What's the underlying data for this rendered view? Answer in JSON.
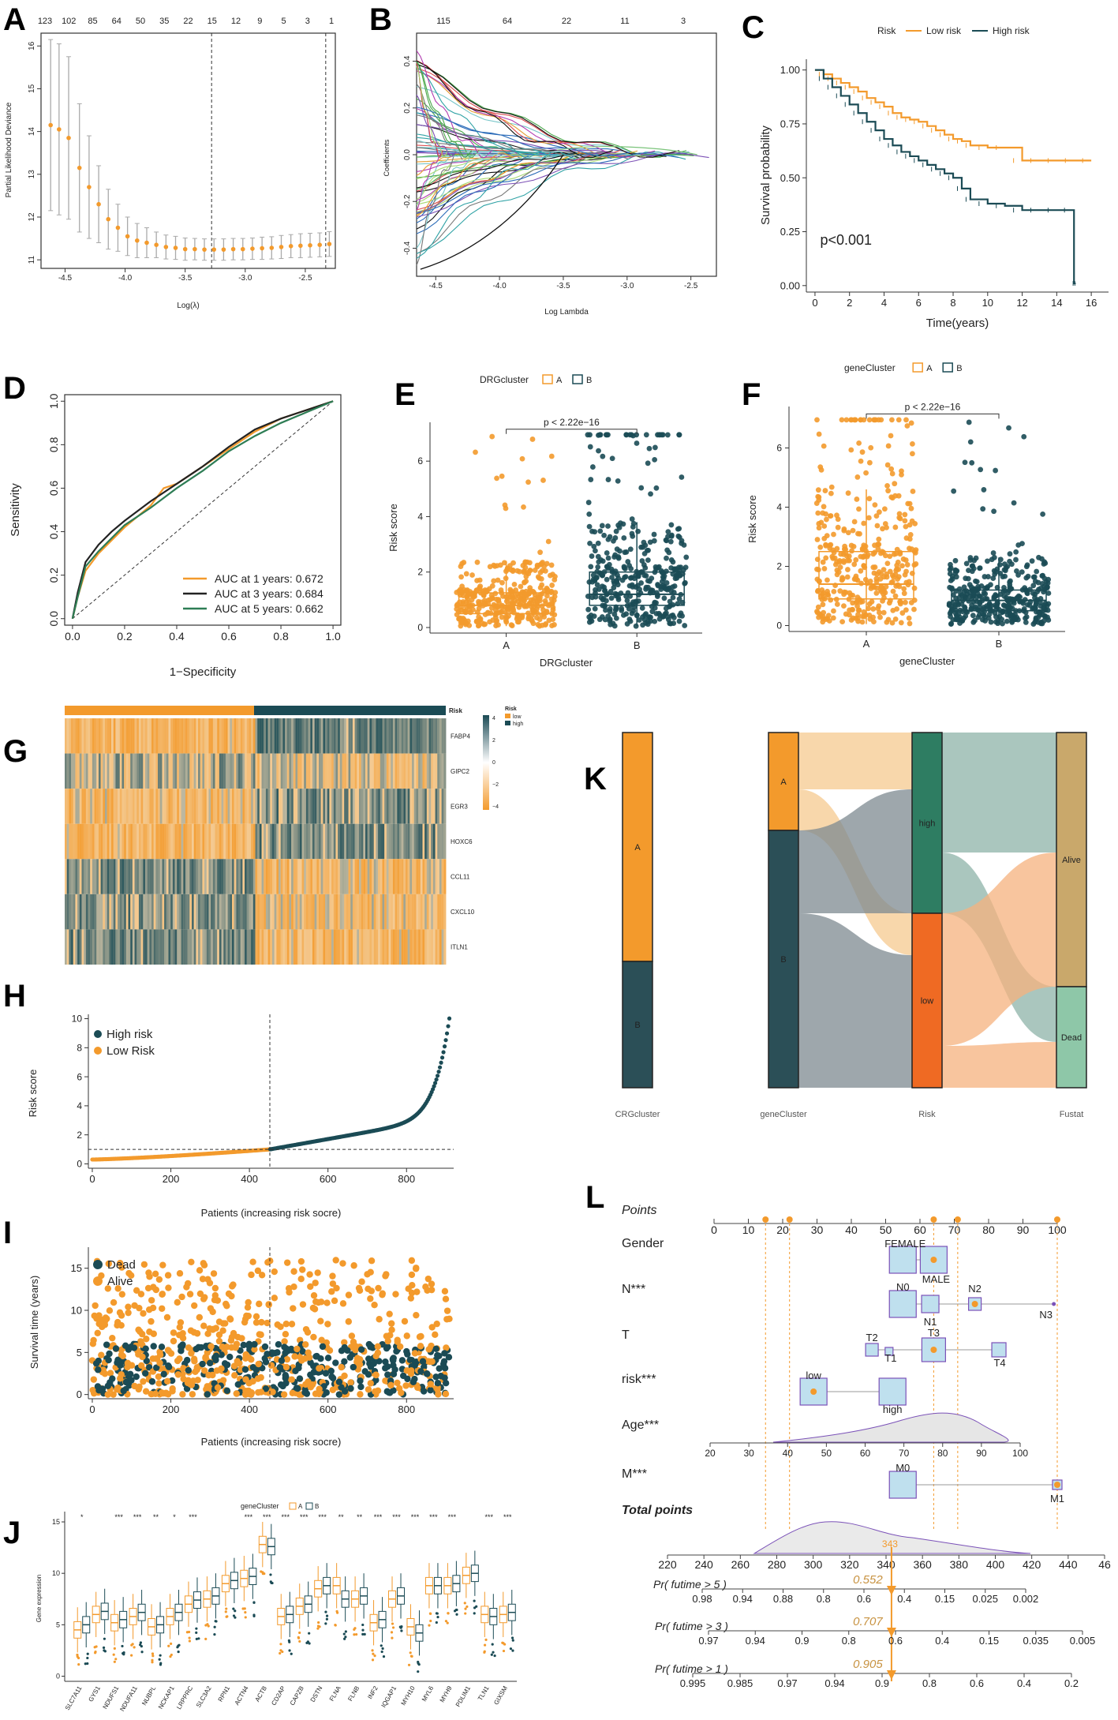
{
  "colors": {
    "orange": "#f39a2c",
    "teal": "#1b4b55",
    "green": "#2e7d55",
    "gray": "#9a9a9a",
    "lightblue": "#bfe0ee",
    "purple": "#7b52b8"
  },
  "panel_labels": {
    "A": "A",
    "B": "B",
    "C": "C",
    "D": "D",
    "E": "E",
    "F": "F",
    "G": "G",
    "H": "H",
    "I": "I",
    "J": "J",
    "K": "K",
    "L": "L"
  },
  "chart_data": [
    {
      "id": "A",
      "type": "scatter",
      "xlabel": "Log(λ)",
      "ylabel": "Partial Likelihood Deviance",
      "top_ticks": [
        "123",
        "102",
        "85",
        "64",
        "50",
        "35",
        "22",
        "15",
        "12",
        "9",
        "5",
        "3",
        "1"
      ],
      "x_ticks": [
        "-4.5",
        "-4.0",
        "-3.5",
        "-3.0",
        "-2.5"
      ],
      "x_tick_vals": [
        -4.5,
        -4.0,
        -3.5,
        -3.0,
        -2.5
      ],
      "y_ticks": [
        "11",
        "12",
        "13",
        "14",
        "15",
        "16"
      ],
      "y_tick_vals": [
        11,
        12,
        13,
        14,
        15,
        16
      ],
      "xlim": [
        -4.7,
        -2.25
      ],
      "ylim": [
        10.8,
        16.3
      ],
      "x": [
        -4.62,
        -4.55,
        -4.47,
        -4.38,
        -4.3,
        -4.22,
        -4.14,
        -4.06,
        -3.98,
        -3.9,
        -3.82,
        -3.74,
        -3.66,
        -3.58,
        -3.5,
        -3.42,
        -3.34,
        -3.26,
        -3.18,
        -3.1,
        -3.02,
        -2.94,
        -2.86,
        -2.78,
        -2.7,
        -2.62,
        -2.54,
        -2.46,
        -2.38,
        -2.3
      ],
      "y": [
        14.15,
        14.05,
        13.85,
        13.15,
        12.7,
        12.3,
        11.95,
        11.75,
        11.55,
        11.45,
        11.4,
        11.35,
        11.3,
        11.28,
        11.25,
        11.25,
        11.24,
        11.24,
        11.24,
        11.25,
        11.25,
        11.26,
        11.27,
        11.28,
        11.3,
        11.32,
        11.33,
        11.34,
        11.35,
        11.37
      ],
      "err": [
        2.0,
        2.0,
        1.9,
        1.5,
        1.2,
        0.9,
        0.7,
        0.55,
        0.45,
        0.4,
        0.35,
        0.3,
        0.28,
        0.27,
        0.26,
        0.25,
        0.25,
        0.25,
        0.25,
        0.25,
        0.25,
        0.25,
        0.26,
        0.26,
        0.27,
        0.27,
        0.28,
        0.28,
        0.28,
        0.29
      ],
      "vlines": [
        -3.28,
        -2.33
      ]
    },
    {
      "id": "B",
      "type": "line",
      "xlabel": "Log Lambda",
      "ylabel": "Coefficients",
      "top_ticks": [
        "115",
        "64",
        "22",
        "11",
        "3"
      ],
      "x_ticks": [
        "-4.5",
        "-4.0",
        "-3.5",
        "-3.0",
        "-2.5"
      ],
      "x_tick_vals": [
        -4.5,
        -4.0,
        -3.5,
        -3.0,
        -2.5
      ],
      "y_ticks": [
        "-0.4",
        "-0.2",
        "0.0",
        "0.2",
        "0.4"
      ],
      "y_tick_vals": [
        -0.4,
        -0.2,
        0.0,
        0.2,
        0.4
      ],
      "xlim": [
        -4.65,
        -2.3
      ],
      "ylim": [
        -0.52,
        0.52
      ]
    },
    {
      "id": "C",
      "type": "line",
      "legend_title": "Risk",
      "legend": [
        "Low risk",
        "High risk"
      ],
      "xlabel": "Time(years)",
      "ylabel": "Survival probability",
      "x_ticks": [
        "0",
        "2",
        "4",
        "6",
        "8",
        "10",
        "12",
        "14",
        "16"
      ],
      "x_tick_vals": [
        0,
        2,
        4,
        6,
        8,
        10,
        12,
        14,
        16
      ],
      "y_ticks": [
        "0.00",
        "0.25",
        "0.50",
        "0.75",
        "1.00"
      ],
      "y_tick_vals": [
        0,
        0.25,
        0.5,
        0.75,
        1
      ],
      "xlim": [
        -0.5,
        17
      ],
      "ylim": [
        -0.03,
        1.05
      ],
      "annotation": "p<0.001",
      "series": [
        {
          "name": "Low risk",
          "x": [
            0,
            0.5,
            1,
            1.5,
            2,
            2.5,
            3,
            3.5,
            4,
            4.5,
            5,
            5.5,
            6,
            6.5,
            7,
            7.5,
            8,
            8.5,
            9,
            10,
            11,
            12,
            13,
            14,
            15,
            16
          ],
          "y": [
            1,
            0.98,
            0.96,
            0.94,
            0.92,
            0.9,
            0.87,
            0.85,
            0.83,
            0.8,
            0.78,
            0.77,
            0.76,
            0.74,
            0.72,
            0.7,
            0.68,
            0.67,
            0.65,
            0.64,
            0.64,
            0.58,
            0.58,
            0.58,
            0.58,
            0.58
          ]
        },
        {
          "name": "High risk",
          "x": [
            0,
            0.5,
            1,
            1.5,
            2,
            2.5,
            3,
            3.5,
            4,
            4.5,
            5,
            5.5,
            6,
            6.5,
            7,
            7.5,
            8,
            8.5,
            9,
            10,
            11,
            12,
            13,
            14,
            14.9,
            15,
            15.1
          ],
          "y": [
            1,
            0.96,
            0.92,
            0.88,
            0.84,
            0.8,
            0.76,
            0.72,
            0.68,
            0.65,
            0.62,
            0.6,
            0.58,
            0.56,
            0.54,
            0.52,
            0.5,
            0.45,
            0.4,
            0.38,
            0.37,
            0.35,
            0.35,
            0.35,
            0.35,
            0.01,
            0.01
          ]
        }
      ]
    },
    {
      "id": "D",
      "type": "line",
      "xlabel": "1−Specificity",
      "ylabel": "Sensitivity",
      "x_ticks": [
        "0.0",
        "0.2",
        "0.4",
        "0.6",
        "0.8",
        "1.0"
      ],
      "x_tick_vals": [
        0,
        0.2,
        0.4,
        0.6,
        0.8,
        1
      ],
      "y_ticks": [
        "0.0",
        "0.2",
        "0.4",
        "0.6",
        "0.8",
        "1.0"
      ],
      "y_tick_vals": [
        0,
        0.2,
        0.4,
        0.6,
        0.8,
        1
      ],
      "xlim": [
        -0.03,
        1.03
      ],
      "ylim": [
        -0.03,
        1.03
      ],
      "legend": [
        "AUC at 1 years: 0.672",
        "AUC at 3 years: 0.684",
        "AUC at 5 years: 0.662"
      ],
      "series": [
        {
          "name": "1 years",
          "x": [
            0,
            0.02,
            0.05,
            0.1,
            0.15,
            0.2,
            0.3,
            0.35,
            0.4,
            0.5,
            0.6,
            0.7,
            0.8,
            0.9,
            1
          ],
          "y": [
            0,
            0.1,
            0.22,
            0.3,
            0.36,
            0.42,
            0.52,
            0.6,
            0.62,
            0.7,
            0.78,
            0.86,
            0.92,
            0.96,
            1
          ]
        },
        {
          "name": "3 years",
          "x": [
            0,
            0.02,
            0.05,
            0.1,
            0.15,
            0.2,
            0.3,
            0.4,
            0.5,
            0.6,
            0.7,
            0.8,
            0.9,
            1
          ],
          "y": [
            0,
            0.12,
            0.26,
            0.34,
            0.4,
            0.45,
            0.54,
            0.62,
            0.7,
            0.79,
            0.87,
            0.92,
            0.96,
            1
          ]
        },
        {
          "name": "5 years",
          "x": [
            0,
            0.02,
            0.05,
            0.1,
            0.15,
            0.2,
            0.3,
            0.4,
            0.5,
            0.6,
            0.7,
            0.8,
            0.9,
            1
          ],
          "y": [
            0,
            0.1,
            0.24,
            0.31,
            0.37,
            0.43,
            0.51,
            0.6,
            0.68,
            0.77,
            0.84,
            0.9,
            0.95,
            1
          ]
        }
      ]
    },
    {
      "id": "E",
      "type": "box",
      "legend_title": "DRGcluster",
      "legend": [
        "A",
        "B"
      ],
      "xlabel": "DRGcluster",
      "ylabel": "Risk score",
      "pvalue": "p < 2.22e−16",
      "categories": [
        "A",
        "B"
      ],
      "y_ticks": [
        "0",
        "2",
        "4",
        "6"
      ],
      "y_tick_vals": [
        0,
        2,
        4,
        6
      ],
      "ylim": [
        -0.2,
        7.4
      ],
      "boxes": [
        {
          "q1": 0.5,
          "median": 0.8,
          "q3": 1.25,
          "wlo": 0.05,
          "whi": 2.4
        },
        {
          "q1": 0.8,
          "median": 1.2,
          "q3": 2.0,
          "wlo": 0.05,
          "whi": 3.8
        }
      ]
    },
    {
      "id": "F",
      "type": "box",
      "legend_title": "geneCluster",
      "legend": [
        "A",
        "B"
      ],
      "xlabel": "geneCluster",
      "ylabel": "Risk score",
      "pvalue": "p < 2.22e−16",
      "categories": [
        "A",
        "B"
      ],
      "y_ticks": [
        "0",
        "2",
        "4",
        "6"
      ],
      "y_tick_vals": [
        0,
        2,
        4,
        6
      ],
      "ylim": [
        -0.2,
        7.4
      ],
      "boxes": [
        {
          "q1": 0.9,
          "median": 1.4,
          "q3": 2.5,
          "wlo": 0.05,
          "whi": 4.6
        },
        {
          "q1": 0.5,
          "median": 0.85,
          "q3": 1.2,
          "wlo": 0.05,
          "whi": 2.3
        }
      ]
    },
    {
      "id": "G",
      "type": "heatmap",
      "rows": [
        "FABP4",
        "GIPC2",
        "EGR3",
        "HOXC6",
        "CCL11",
        "CXCL10",
        "ITLN1"
      ],
      "annotation": "Risk",
      "legend_title": "Risk",
      "legend": [
        "low",
        "high"
      ],
      "scale_ticks": [
        "4",
        "2",
        "0",
        "−2",
        "−4"
      ]
    },
    {
      "id": "H",
      "type": "scatter",
      "xlabel": "Patients (increasing risk socre)",
      "ylabel": "Risk score",
      "legend": [
        "High risk",
        "Low Risk"
      ],
      "x_ticks": [
        "0",
        "200",
        "400",
        "600",
        "800"
      ],
      "x_tick_vals": [
        0,
        200,
        400,
        600,
        800
      ],
      "y_ticks": [
        "0",
        "2",
        "4",
        "6",
        "8",
        "10"
      ],
      "y_tick_vals": [
        0,
        2,
        4,
        6,
        8,
        10
      ],
      "xlim": [
        -10,
        920
      ],
      "ylim": [
        -0.3,
        10.3
      ],
      "cutoff_x": 452,
      "cutoff_y": 1.0
    },
    {
      "id": "I",
      "type": "scatter",
      "xlabel": "Patients (increasing risk socre)",
      "ylabel": "Survival time (years)",
      "legend": [
        "Dead",
        "Alive"
      ],
      "x_ticks": [
        "0",
        "200",
        "400",
        "600",
        "800"
      ],
      "x_tick_vals": [
        0,
        200,
        400,
        600,
        800
      ],
      "y_ticks": [
        "0",
        "5",
        "10",
        "15"
      ],
      "y_tick_vals": [
        0,
        5,
        10,
        15
      ],
      "xlim": [
        -10,
        920
      ],
      "ylim": [
        -0.5,
        17.5
      ],
      "cutoff_x": 452
    },
    {
      "id": "J",
      "type": "box",
      "legend_title": "geneCluster",
      "legend": [
        "A",
        "B"
      ],
      "ylabel": "Gene expression",
      "y_ticks": [
        "0",
        "5",
        "10",
        "15"
      ],
      "y_tick_vals": [
        0,
        5,
        10,
        15
      ],
      "ylim": [
        -0.5,
        16
      ],
      "categories": [
        "SLC7A11",
        "GYS1",
        "NDUFS1",
        "NDUFA11",
        "NUBPL",
        "NCKAP1",
        "LRPPRC",
        "SLC3A2",
        "RPN1",
        "ACTN4",
        "ACTB",
        "CD2AP",
        "CAPZB",
        "DSTN",
        "FLNA",
        "FLNB",
        "INF2",
        "IQGAP1",
        "MYH10",
        "MYL6",
        "MYH9",
        "PDLIM1",
        "TLN1",
        "GIXSM"
      ],
      "signif": [
        "*",
        "",
        "***",
        "***",
        "**",
        "*",
        "***",
        "",
        "",
        "***",
        "***",
        "***",
        "***",
        "***",
        "**",
        "**",
        "***",
        "***",
        "***",
        "***",
        "***",
        "",
        "***",
        "***"
      ],
      "medians_A": [
        4.5,
        6.0,
        5.2,
        5.8,
        4.8,
        5.8,
        7.0,
        7.5,
        9.0,
        9.5,
        12.8,
        5.8,
        6.8,
        8.5,
        8.8,
        7.5,
        5.2,
        7.5,
        4.8,
        8.8,
        8.8,
        9.8,
        6.0,
        6.0
      ],
      "medians_B": [
        5.0,
        6.3,
        5.5,
        6.2,
        5.0,
        6.2,
        7.4,
        7.8,
        9.3,
        9.7,
        12.6,
        6.0,
        7.0,
        8.8,
        7.5,
        7.8,
        5.5,
        7.8,
        4.2,
        8.8,
        9.0,
        10.0,
        5.8,
        6.2
      ]
    },
    {
      "id": "K",
      "type": "sankey",
      "axes": [
        "CRGcluster",
        "geneCluster",
        "Risk",
        "Fustat"
      ],
      "nodes": [
        [
          "A",
          "B"
        ],
        [
          "A",
          "B"
        ],
        [
          "high",
          "low"
        ],
        [
          "Alive",
          "Dead"
        ]
      ]
    },
    {
      "id": "L",
      "type": "nomogram",
      "rows": [
        "Points",
        "Gender",
        "N***",
        "T",
        "risk***",
        "Age***",
        "M***",
        "Total points",
        "Pr( futime > 5 )",
        "Pr( futime > 3 )",
        "Pr( futime > 1 )"
      ],
      "points_ticks": [
        "0",
        "10",
        "20",
        "30",
        "40",
        "50",
        "60",
        "70",
        "80",
        "90",
        "100"
      ],
      "age_ticks": [
        "20",
        "30",
        "40",
        "50",
        "60",
        "70",
        "80",
        "90",
        "100"
      ],
      "total_ticks": [
        "220",
        "240",
        "260",
        "280",
        "300",
        "320",
        "340",
        "360",
        "380",
        "400",
        "420",
        "440",
        "46"
      ],
      "pr5_ticks": [
        "0.98",
        "0.94",
        "0.88",
        "0.8",
        "0.6",
        "0.4",
        "0.15",
        "0.025",
        "0.002"
      ],
      "pr3_ticks": [
        "0.97",
        "0.94",
        "0.9",
        "0.8",
        "0.6",
        "0.4",
        "0.15",
        "0.035",
        "0.005"
      ],
      "pr1_ticks": [
        "0.995",
        "0.985",
        "0.97",
        "0.94",
        "0.9",
        "0.8",
        "0.6",
        "0.4",
        "0.2"
      ],
      "pr_values": [
        "0.552",
        "0.707",
        "0.905"
      ],
      "total_value": "343",
      "gender_labels": [
        "FEMALE",
        "MALE"
      ],
      "n_labels": [
        "N0",
        "N1",
        "N2",
        "N3"
      ],
      "t_labels": [
        "T2",
        "T1",
        "T3",
        "T4"
      ],
      "risk_labels": [
        "low",
        "high"
      ],
      "m_labels": [
        "M0",
        "M1"
      ]
    }
  ]
}
